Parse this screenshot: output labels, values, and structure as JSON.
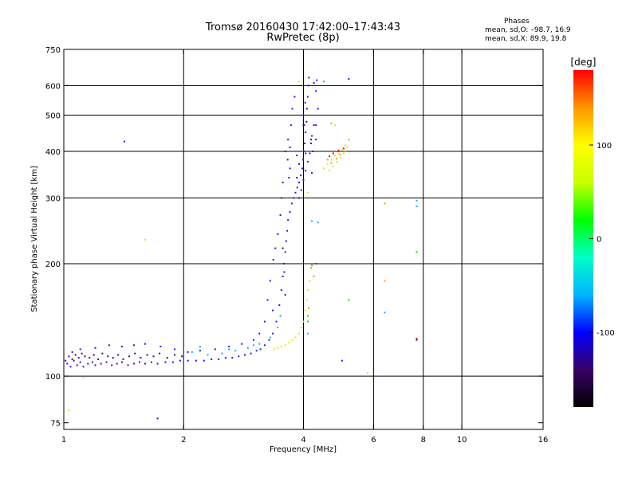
{
  "header": {
    "title_line1": "Tromsø 20160430 17:42:00–17:43:43",
    "title_line2": "RwPretec (8p)"
  },
  "phase_stats": {
    "heading": "Phases",
    "line_o": "mean, sd,O: –98.7, 16.9",
    "line_x": "mean, sd,X:  89.9, 19.8"
  },
  "chart_data": {
    "type": "scatter",
    "title": "Tromsø 20160430 17:42:00–17:43:43",
    "subtitle": "RwPretec (8p)",
    "xlabel": "Frequency [MHz]",
    "ylabel": "Stationary phase Virtual Height [km]",
    "x_scale": "log",
    "y_scale": "log",
    "xlim": [
      1,
      16
    ],
    "ylim": [
      72,
      750
    ],
    "x_ticks": [
      1,
      2,
      4,
      6,
      8,
      10,
      16
    ],
    "y_ticks": [
      75,
      100,
      200,
      300,
      400,
      500,
      600,
      750
    ],
    "x_gridlines": [
      2,
      4,
      6,
      8,
      10
    ],
    "y_gridlines": [
      100,
      200,
      300,
      400,
      500,
      600
    ],
    "grid": true,
    "colorbar": {
      "unit_label": "[deg]",
      "min": -180,
      "max": 180,
      "ticks": [
        100,
        0,
        -100
      ],
      "colors": [
        "#000000",
        "#3a0066",
        "#0000ff",
        "#00b4ff",
        "#00ffc8",
        "#00ff00",
        "#c8ff00",
        "#ffff00",
        "#ff9600",
        "#ff0000"
      ]
    },
    "series": [
      {
        "color": "#1a18e6",
        "points": [
          [
            1.02,
            108
          ],
          [
            1.04,
            106
          ],
          [
            1.06,
            110
          ],
          [
            1.08,
            107
          ],
          [
            1.1,
            109
          ],
          [
            1.12,
            106
          ],
          [
            1.15,
            108
          ],
          [
            1.18,
            109
          ],
          [
            1.2,
            107
          ],
          [
            1.24,
            108
          ],
          [
            1.28,
            109
          ],
          [
            1.32,
            107
          ],
          [
            1.36,
            108
          ],
          [
            1.4,
            109
          ],
          [
            1.45,
            107
          ],
          [
            1.5,
            108
          ],
          [
            1.55,
            109
          ],
          [
            1.6,
            108
          ],
          [
            1.66,
            109
          ],
          [
            1.72,
            108
          ],
          [
            1.8,
            109
          ],
          [
            1.88,
            109
          ],
          [
            1.96,
            110
          ],
          [
            2.05,
            110
          ],
          [
            2.15,
            110
          ],
          [
            2.25,
            110
          ],
          [
            2.35,
            111
          ],
          [
            2.45,
            111
          ],
          [
            2.55,
            112
          ],
          [
            2.65,
            112
          ],
          [
            2.75,
            113
          ],
          [
            2.85,
            114
          ],
          [
            2.95,
            115
          ],
          [
            3.05,
            117
          ],
          [
            3.12,
            118
          ],
          [
            3.2,
            121
          ],
          [
            3.28,
            125
          ],
          [
            3.35,
            130
          ],
          [
            3.42,
            140
          ],
          [
            3.48,
            155
          ],
          [
            3.52,
            170
          ],
          [
            3.55,
            185
          ],
          [
            3.57,
            200
          ],
          [
            3.6,
            215
          ],
          [
            3.62,
            230
          ],
          [
            3.64,
            245
          ],
          [
            3.66,
            262
          ],
          [
            3.7,
            275
          ],
          [
            3.74,
            290
          ],
          [
            3.78,
            300
          ],
          [
            3.82,
            310
          ],
          [
            3.86,
            320
          ],
          [
            3.9,
            330
          ],
          [
            3.94,
            345
          ],
          [
            3.97,
            360
          ],
          [
            3.99,
            380
          ],
          [
            4.01,
            400
          ],
          [
            4.03,
            420
          ],
          [
            4.05,
            450
          ],
          [
            4.07,
            480
          ],
          [
            4.08,
            520
          ],
          [
            4.1,
            560
          ],
          [
            4.12,
            600
          ],
          [
            4.13,
            630
          ],
          [
            4.3,
            580
          ],
          [
            4.35,
            520
          ],
          [
            4.25,
            470
          ],
          [
            4.3,
            430
          ],
          [
            4.22,
            400
          ],
          [
            4.2,
            350
          ],
          [
            3.6,
            400
          ],
          [
            3.65,
            380
          ],
          [
            3.7,
            360
          ],
          [
            3.68,
            340
          ],
          [
            3.55,
            330
          ],
          [
            3.52,
            300
          ],
          [
            3.5,
            270
          ],
          [
            3.45,
            240
          ],
          [
            3.4,
            220
          ],
          [
            3.36,
            205
          ],
          [
            3.3,
            180
          ],
          [
            3.25,
            160
          ],
          [
            3.35,
            150
          ],
          [
            3.2,
            140
          ],
          [
            3.1,
            130
          ],
          [
            3.0,
            125
          ],
          [
            2.8,
            122
          ],
          [
            2.6,
            120
          ],
          [
            2.4,
            118
          ],
          [
            2.2,
            117
          ],
          [
            2.05,
            116
          ],
          [
            1.9,
            118
          ],
          [
            1.75,
            120
          ],
          [
            1.6,
            122
          ],
          [
            1.5,
            121
          ],
          [
            1.4,
            120
          ],
          [
            1.3,
            121
          ],
          [
            1.2,
            119
          ],
          [
            1.1,
            118
          ],
          [
            1.05,
            116
          ],
          [
            3.9,
            300
          ],
          [
            3.95,
            315
          ],
          [
            4.0,
            335
          ],
          [
            4.05,
            355
          ],
          [
            4.1,
            375
          ],
          [
            4.15,
            395
          ],
          [
            4.18,
            420
          ],
          [
            4.2,
            440
          ],
          [
            4.02,
            470
          ],
          [
            4.0,
            500
          ],
          [
            4.04,
            540
          ],
          [
            3.8,
            560
          ],
          [
            3.75,
            520
          ],
          [
            3.72,
            470
          ],
          [
            3.66,
            430
          ],
          [
            3.7,
            410
          ],
          [
            3.85,
            390
          ],
          [
            3.9,
            370
          ],
          [
            4.32,
            620
          ],
          [
            4.25,
            610
          ],
          [
            5.2,
            625
          ],
          [
            5.0,
            110
          ],
          [
            7.7,
            125
          ],
          [
            1.42,
            425
          ]
        ]
      },
      {
        "color": "#3a0a8a",
        "points": [
          [
            1.01,
            110
          ],
          [
            1.03,
            113
          ],
          [
            1.05,
            111
          ],
          [
            1.07,
            114
          ],
          [
            1.09,
            112
          ],
          [
            1.11,
            115
          ],
          [
            1.13,
            113
          ],
          [
            1.16,
            112
          ],
          [
            1.19,
            114
          ],
          [
            1.22,
            111
          ],
          [
            1.25,
            115
          ],
          [
            1.29,
            113
          ],
          [
            1.33,
            112
          ],
          [
            1.37,
            114
          ],
          [
            1.41,
            111
          ],
          [
            1.46,
            113
          ],
          [
            1.51,
            115
          ],
          [
            1.56,
            112
          ],
          [
            1.62,
            114
          ],
          [
            1.68,
            113
          ],
          [
            1.74,
            115
          ],
          [
            1.82,
            112
          ],
          [
            1.9,
            114
          ],
          [
            1.98,
            113
          ],
          [
            1.72,
            77
          ],
          [
            3.55,
            220
          ],
          [
            3.58,
            190
          ],
          [
            3.6,
            165
          ],
          [
            4.0,
            470
          ],
          [
            4.18,
            430
          ],
          [
            3.85,
            340
          ],
          [
            4.05,
            395
          ],
          [
            4.3,
            470
          ],
          [
            5.2,
            430
          ]
        ]
      },
      {
        "color": "#00b4ff",
        "points": [
          [
            2.1,
            116
          ],
          [
            2.3,
            114
          ],
          [
            2.5,
            115
          ],
          [
            2.7,
            117
          ],
          [
            2.9,
            119
          ],
          [
            3.1,
            122
          ],
          [
            3.3,
            127
          ],
          [
            3.45,
            135
          ],
          [
            3.5,
            145
          ],
          [
            2.2,
            120
          ],
          [
            2.6,
            118
          ],
          [
            3.0,
            121
          ],
          [
            4.1,
            130
          ],
          [
            4.35,
            258
          ],
          [
            7.7,
            295
          ],
          [
            7.7,
            285
          ],
          [
            6.4,
            148
          ],
          [
            4.2,
            260
          ],
          [
            4.5,
            615
          ]
        ]
      },
      {
        "color": "#e6e600",
        "points": [
          [
            3.38,
            118
          ],
          [
            3.45,
            119
          ],
          [
            3.52,
            120
          ],
          [
            3.6,
            121
          ],
          [
            3.68,
            123
          ],
          [
            3.75,
            125
          ],
          [
            3.82,
            127
          ],
          [
            3.9,
            130
          ],
          [
            3.95,
            135
          ],
          [
            4.0,
            140
          ],
          [
            4.05,
            150
          ],
          [
            4.08,
            160
          ],
          [
            4.1,
            170
          ],
          [
            4.14,
            180
          ],
          [
            4.5,
            360
          ],
          [
            4.6,
            370
          ],
          [
            4.7,
            380
          ],
          [
            4.8,
            390
          ],
          [
            4.9,
            395
          ],
          [
            5.0,
            405
          ],
          [
            5.1,
            415
          ],
          [
            5.2,
            430
          ],
          [
            4.65,
            355
          ],
          [
            4.75,
            365
          ],
          [
            4.85,
            375
          ],
          [
            4.95,
            385
          ],
          [
            5.05,
            395
          ],
          [
            5.15,
            410
          ],
          [
            1.6,
            232
          ],
          [
            1.12,
            99
          ],
          [
            1.03,
            81
          ],
          [
            4.8,
            470
          ],
          [
            4.1,
            310
          ],
          [
            3.9,
            615
          ],
          [
            5.8,
            102
          ]
        ]
      },
      {
        "color": "#ff9600",
        "points": [
          [
            4.6,
            380
          ],
          [
            4.7,
            372
          ],
          [
            4.85,
            382
          ],
          [
            4.95,
            392
          ],
          [
            5.1,
            400
          ],
          [
            4.12,
            152
          ],
          [
            4.18,
            195
          ],
          [
            6.4,
            290
          ],
          [
            6.4,
            180
          ],
          [
            4.7,
            475
          ],
          [
            4.25,
            185
          ]
        ]
      },
      {
        "color": "#e60000",
        "points": [
          [
            4.65,
            388
          ],
          [
            4.75,
            395
          ],
          [
            4.9,
            402
          ],
          [
            5.05,
            407
          ],
          [
            7.7,
            126
          ],
          [
            4.3,
            200
          ]
        ]
      },
      {
        "color": "#00e600",
        "points": [
          [
            4.1,
            145
          ],
          [
            4.2,
            198
          ],
          [
            5.2,
            160
          ],
          [
            4.1,
            140
          ],
          [
            7.7,
            215
          ]
        ]
      }
    ]
  }
}
